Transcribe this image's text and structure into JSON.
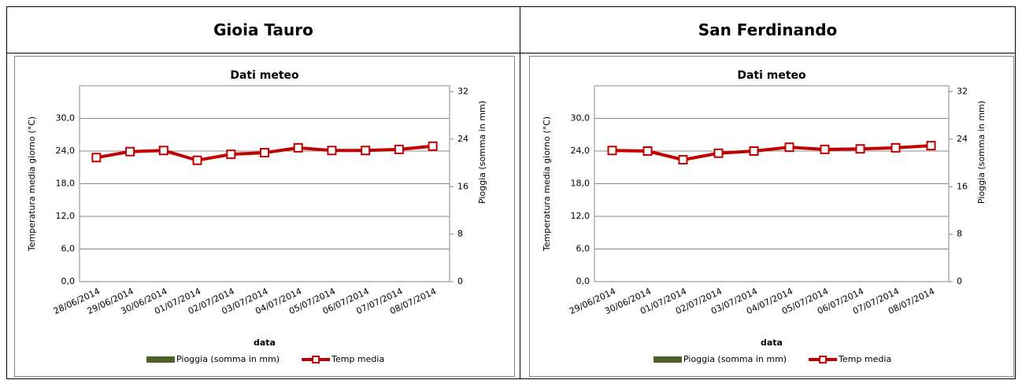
{
  "table": {
    "headers": [
      "Gioia Tauro",
      "San Ferdinando"
    ]
  },
  "chart_data": [
    {
      "type": "line",
      "title": "Dati meteo",
      "x_label": "data",
      "y_label": "Temperatura media giorno (°C)",
      "y2_label": "Pioggia (somma in mm)",
      "categories": [
        "28/06/2014",
        "29/06/2014",
        "30/06/2014",
        "01/07/2014",
        "02/07/2014",
        "03/07/2014",
        "04/07/2014",
        "05/07/2014",
        "06/07/2014",
        "07/07/2014",
        "08/07/2014"
      ],
      "series": [
        {
          "name": "Pioggia (somma in mm)",
          "color": "#4f6228",
          "axis": "y2",
          "type": "bar",
          "values": [
            0,
            0,
            0,
            0,
            0,
            0,
            0,
            0,
            0,
            0,
            0
          ]
        },
        {
          "name": "Temp media",
          "color": "#c00000",
          "type": "line",
          "values": [
            22.8,
            23.9,
            24.1,
            22.3,
            23.4,
            23.7,
            24.6,
            24.1,
            24.1,
            24.3,
            24.9
          ]
        }
      ],
      "ylim": [
        0,
        36
      ],
      "yticks": [
        {
          "value": 0,
          "label": "0,0"
        },
        {
          "value": 6,
          "label": "6,0"
        },
        {
          "value": 12,
          "label": "12,0"
        },
        {
          "value": 18,
          "label": "18,0"
        },
        {
          "value": 24,
          "label": "24,0"
        },
        {
          "value": 30,
          "label": "30,0"
        }
      ],
      "y2lim": [
        0,
        33
      ],
      "y2ticks": [
        0,
        8,
        16,
        24,
        32
      ],
      "grid": true,
      "legend": "bottom"
    },
    {
      "type": "line",
      "title": "Dati meteo",
      "x_label": "data",
      "y_label": "Temperatura media giorno (°C)",
      "y2_label": "Pioggia (somma in mm)",
      "categories": [
        "29/06/2014",
        "30/06/2014",
        "01/07/2014",
        "02/07/2014",
        "03/07/2014",
        "04/07/2014",
        "05/07/2014",
        "06/07/2014",
        "07/07/2014",
        "08/07/2014"
      ],
      "series": [
        {
          "name": "Pioggia (somma in mm)",
          "color": "#4f6228",
          "axis": "y2",
          "type": "bar",
          "values": [
            0,
            0,
            0,
            0,
            0,
            0,
            0,
            0,
            0,
            0
          ]
        },
        {
          "name": "Temp media",
          "color": "#c00000",
          "type": "line",
          "values": [
            24.1,
            24.0,
            22.4,
            23.6,
            24.0,
            24.7,
            24.3,
            24.4,
            24.6,
            25.0
          ]
        }
      ],
      "ylim": [
        0,
        36
      ],
      "yticks": [
        {
          "value": 0,
          "label": "0,0"
        },
        {
          "value": 6,
          "label": "6,0"
        },
        {
          "value": 12,
          "label": "12,0"
        },
        {
          "value": 18,
          "label": "18,0"
        },
        {
          "value": 24,
          "label": "24,0"
        },
        {
          "value": 30,
          "label": "30,0"
        }
      ],
      "y2lim": [
        0,
        33
      ],
      "y2ticks": [
        0,
        8,
        16,
        24,
        32
      ],
      "grid": true,
      "legend": "bottom"
    }
  ]
}
